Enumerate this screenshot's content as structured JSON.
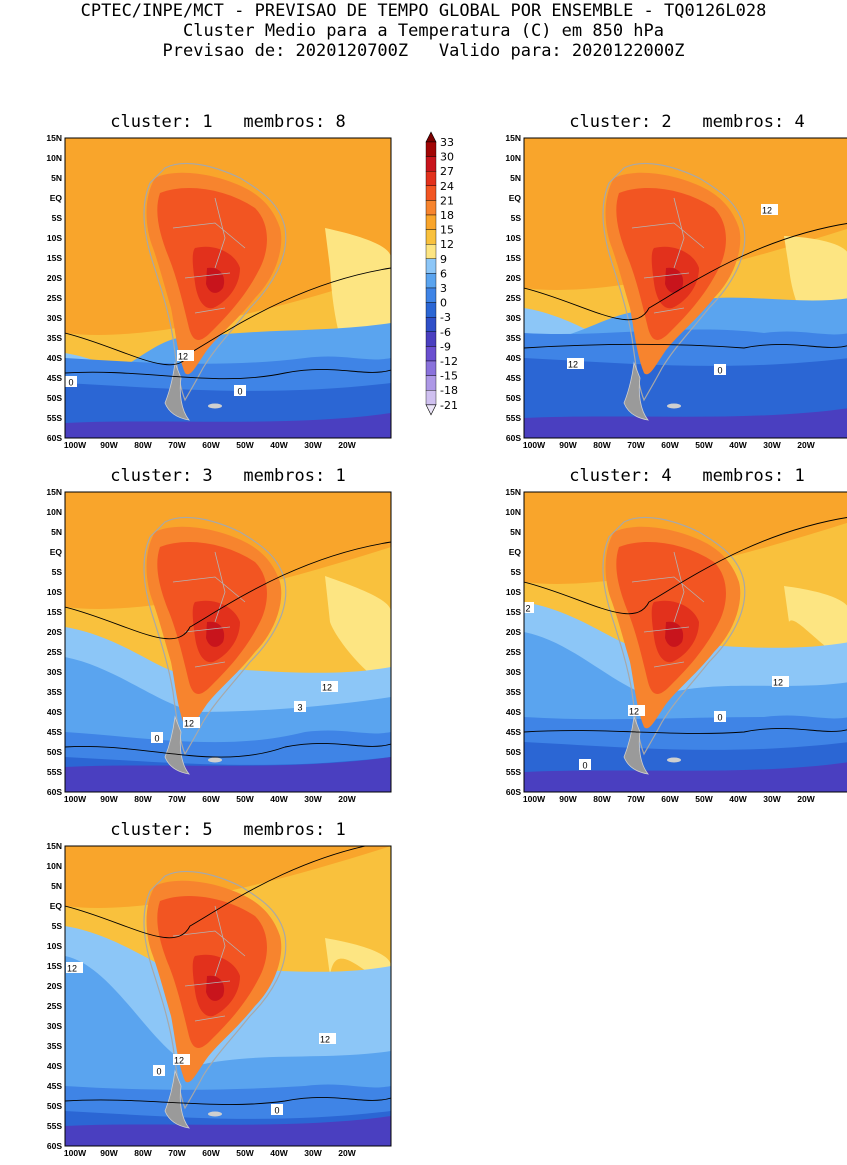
{
  "header": {
    "line1": "CPTEC/INPE/MCT - PREVISAO DE TEMPO GLOBAL POR ENSEMBLE - TQ0126L028",
    "line2": "Cluster Medio para a Temperatura (C) em 850 hPa",
    "line3": "Previsao de: 2020120700Z   Valido para: 2020122000Z"
  },
  "lat_labels": [
    "15N",
    "10N",
    "5N",
    "EQ",
    "5S",
    "10S",
    "15S",
    "20S",
    "25S",
    "30S",
    "35S",
    "40S",
    "45S",
    "50S",
    "55S",
    "60S"
  ],
  "lon_labels": [
    "100W",
    "90W",
    "80W",
    "70W",
    "60W",
    "50W",
    "40W",
    "30W",
    "20W"
  ],
  "colorbar": {
    "levels": [
      "33",
      "30",
      "27",
      "24",
      "21",
      "18",
      "15",
      "12",
      "9",
      "6",
      "3",
      "0",
      "-3",
      "-6",
      "-9",
      "-12",
      "-15",
      "-18",
      "-21"
    ],
    "colors": [
      "#7a0000",
      "#a10505",
      "#c8141c",
      "#e2311c",
      "#f25522",
      "#f7842e",
      "#f9a52b",
      "#f9c13d",
      "#fde582",
      "#8cc6f7",
      "#5aa4ef",
      "#3f84e6",
      "#2b66d4",
      "#2f4fc8",
      "#4a3fc0",
      "#6a4fd0",
      "#8a72dc",
      "#ad98e6",
      "#cfc0f0",
      "#ece6f8"
    ]
  },
  "panels": [
    {
      "title": "cluster: 1   membros: 8",
      "contour_labels": [
        "12",
        "0",
        "0"
      ]
    },
    {
      "title": "cluster: 2   membros: 4",
      "contour_labels": [
        "12",
        "12",
        "0"
      ]
    },
    {
      "title": "cluster: 3   membros: 1",
      "contour_labels": [
        "12",
        "12",
        "3",
        "0"
      ]
    },
    {
      "title": "cluster: 4   membros: 1",
      "contour_labels": [
        "2",
        "12",
        "12",
        "0",
        "0"
      ]
    },
    {
      "title": "cluster: 5   membros: 1",
      "contour_labels": [
        "12",
        "12",
        "12",
        "0",
        "0"
      ]
    }
  ]
}
